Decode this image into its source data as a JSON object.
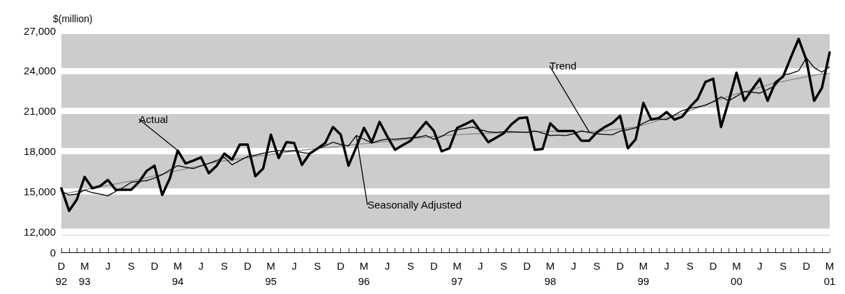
{
  "chart_data": {
    "type": "line",
    "ylabel": "$(million)",
    "categories": [
      "D\n92",
      null,
      null,
      "M\n93",
      null,
      null,
      "J",
      null,
      null,
      "S",
      null,
      null,
      "D",
      null,
      null,
      "M\n94",
      null,
      null,
      "J",
      null,
      null,
      "S",
      null,
      null,
      "D",
      null,
      null,
      "M\n95",
      null,
      null,
      "J",
      null,
      null,
      "S",
      null,
      null,
      "D",
      null,
      null,
      "M\n96",
      null,
      null,
      "J",
      null,
      null,
      "S",
      null,
      null,
      "D",
      null,
      null,
      "M\n97",
      null,
      null,
      "J",
      null,
      null,
      "S",
      null,
      null,
      "D",
      null,
      null,
      "M\n98",
      null,
      null,
      "J",
      null,
      null,
      "S",
      null,
      null,
      "D",
      null,
      null,
      "M\n99",
      null,
      null,
      "J",
      null,
      null,
      "S",
      null,
      null,
      "D",
      null,
      null,
      "M\n00",
      null,
      null,
      "J",
      null,
      null,
      "S",
      null,
      null,
      "D",
      null,
      null,
      "M\n01"
    ],
    "series": [
      {
        "name": "Actual",
        "color": "#000000",
        "line_style": "solid",
        "values": [
          15230,
          13550,
          14400,
          16080,
          15230,
          15400,
          15850,
          15120,
          15120,
          15120,
          15700,
          16530,
          16920,
          14730,
          16000,
          18050,
          17090,
          17300,
          17540,
          16360,
          16900,
          17820,
          17370,
          18500,
          18500,
          16130,
          16700,
          19230,
          17490,
          18670,
          18610,
          16980,
          17820,
          18200,
          18610,
          19800,
          19230,
          16920,
          18300,
          19740,
          18670,
          20190,
          19100,
          18100,
          18450,
          18780,
          19500,
          20190,
          19510,
          17990,
          18220,
          19740,
          20000,
          20300,
          19500,
          18670,
          19000,
          19340,
          20000,
          20470,
          20520,
          18100,
          18160,
          20080,
          19510,
          19510,
          19510,
          18780,
          18780,
          19400,
          19800,
          20100,
          20640,
          18220,
          18890,
          21600,
          20360,
          20470,
          20920,
          20360,
          20580,
          21300,
          21900,
          23170,
          23400,
          19800,
          21760,
          23850,
          21760,
          22600,
          23400,
          21760,
          23120,
          23570,
          25000,
          26380,
          24800,
          21760,
          22720,
          25370
        ]
      },
      {
        "name": "Seasonally Adjusted",
        "color": "#000000",
        "line_style": "dotted",
        "values": [
          15000,
          14730,
          14800,
          15100,
          14900,
          14800,
          14670,
          15000,
          15300,
          15680,
          15750,
          15800,
          16000,
          16250,
          16600,
          16920,
          16800,
          16700,
          16900,
          17090,
          17300,
          17540,
          16980,
          17300,
          17600,
          17700,
          17850,
          17950,
          18050,
          18000,
          18050,
          17900,
          17820,
          18200,
          18400,
          18670,
          18500,
          18390,
          19170,
          18900,
          18610,
          18800,
          18900,
          18900,
          18950,
          19000,
          19050,
          19170,
          18890,
          19100,
          19450,
          19600,
          19700,
          19800,
          19600,
          19450,
          19400,
          19450,
          19450,
          19420,
          19400,
          19510,
          19350,
          19170,
          19200,
          19170,
          19300,
          19510,
          19400,
          19300,
          19250,
          19230,
          19500,
          19600,
          19740,
          20100,
          20360,
          20400,
          20360,
          20700,
          21030,
          21200,
          21300,
          21430,
          21700,
          22050,
          21760,
          22100,
          22440,
          22400,
          22330,
          22600,
          22890,
          23680,
          23800,
          24000,
          24970,
          24240,
          23900,
          24300
        ]
      },
      {
        "name": "Trend",
        "color": "#808080",
        "line_style": "solid",
        "values": [
          14800,
          14900,
          15010,
          15120,
          15230,
          15340,
          15450,
          15560,
          15670,
          15780,
          15900,
          16030,
          16160,
          16290,
          16420,
          16550,
          16680,
          16810,
          16940,
          17070,
          17200,
          17280,
          17360,
          17440,
          17520,
          17600,
          17680,
          17760,
          17840,
          17920,
          18000,
          18070,
          18140,
          18200,
          18260,
          18320,
          18380,
          18440,
          18500,
          18560,
          18620,
          18680,
          18740,
          18800,
          18860,
          18920,
          18980,
          19040,
          19100,
          19150,
          19200,
          19230,
          19260,
          19290,
          19320,
          19340,
          19360,
          19380,
          19400,
          19420,
          19440,
          19460,
          19470,
          19480,
          19500,
          19500,
          19480,
          19460,
          19450,
          19480,
          19540,
          19600,
          19660,
          19730,
          19800,
          19960,
          20130,
          20300,
          20470,
          20640,
          20800,
          21020,
          21240,
          21460,
          21680,
          21900,
          22100,
          22270,
          22440,
          22600,
          22770,
          22940,
          23100,
          23210,
          23330,
          23440,
          23560,
          23670,
          23750,
          23800
        ]
      }
    ],
    "ylim": [
      11700,
      27000
    ],
    "yticks": [
      {
        "value": 12000,
        "label": "12,000"
      },
      {
        "value": 15000,
        "label": "15,000"
      },
      {
        "value": 18000,
        "label": "18,000"
      },
      {
        "value": 21000,
        "label": "21,000"
      },
      {
        "value": 24000,
        "label": "24,000"
      },
      {
        "value": 27000,
        "label": "27,000"
      }
    ],
    "annotations": [
      "0"
    ],
    "grid": "y",
    "legend": false,
    "marker": "none"
  }
}
